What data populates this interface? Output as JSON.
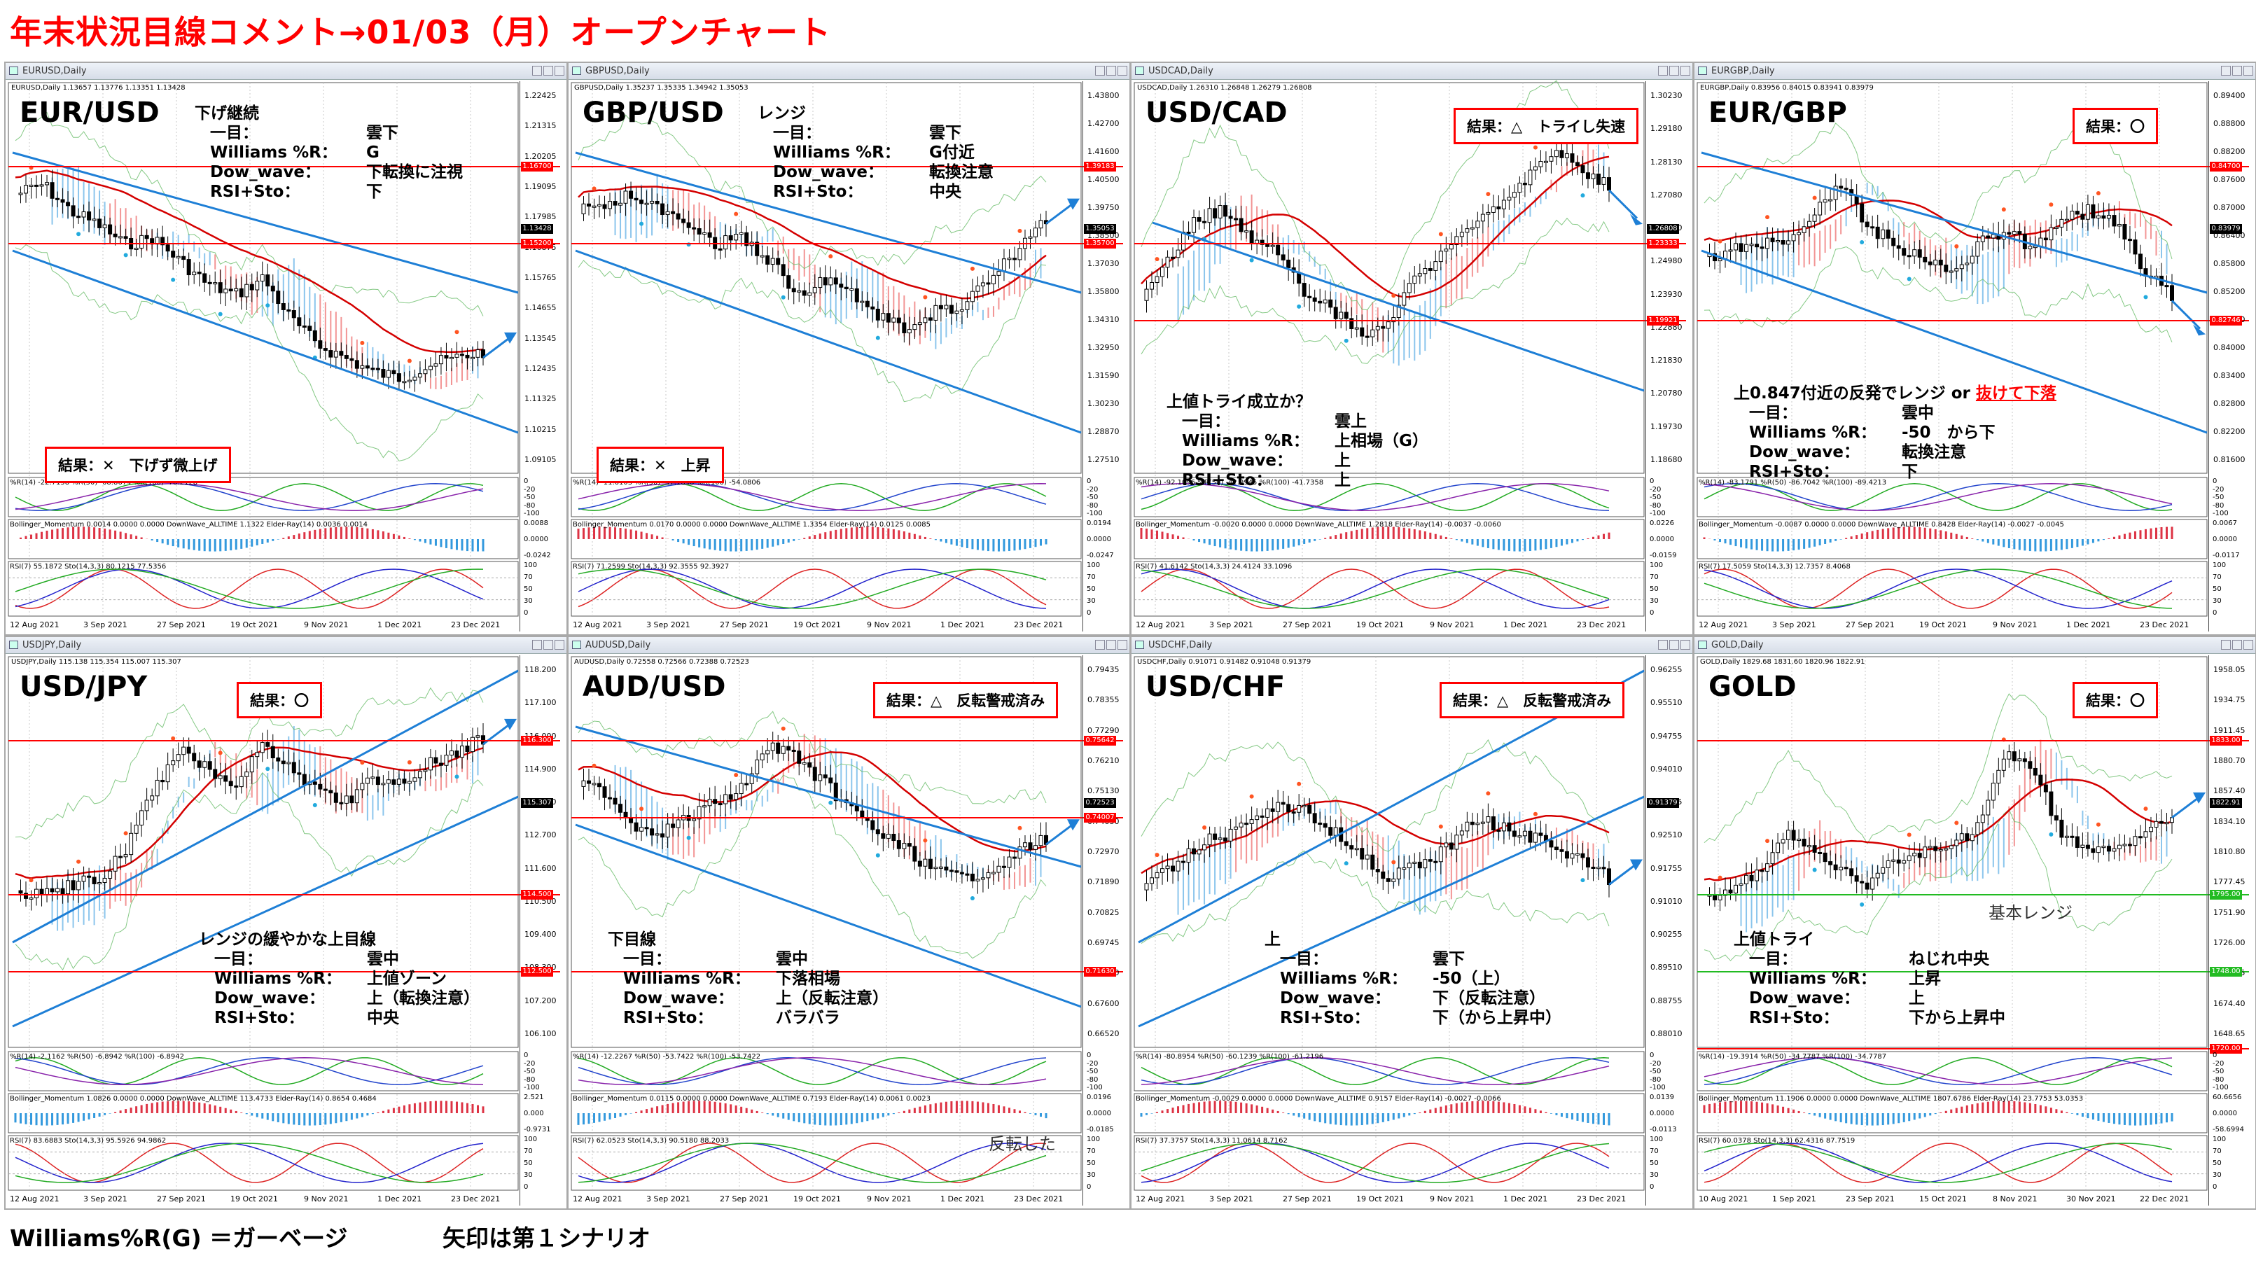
{
  "page_title": "年末状況目線コメント→01/03（月）オープンチャート",
  "footer": {
    "left": "Williams%R(G) ＝ガーベージ",
    "right": "矢印は第１シナリオ"
  },
  "colors": {
    "title": "#ff0000",
    "cloud_up": "#6fb7e8",
    "cloud_down": "#f07a7a",
    "trend": "#1e7fd6",
    "hline": "#ff0000",
    "ma": "#d40000",
    "candle": "#000000"
  },
  "charts": [
    {
      "id": "eurusd",
      "window_title": "EURUSD,Daily",
      "info": "EURUSD,Daily 1.13657 1.13776 1.13351 1.13428",
      "symbol": "EUR/USD",
      "comment": {
        "head": "下げ継続",
        "rows": [
          [
            "一目：",
            "雲下"
          ],
          [
            "Williams %R：",
            "G"
          ],
          [
            "Dow_wave：",
            "下転換に注視"
          ],
          [
            "RSI+Sto：",
            "下"
          ]
        ]
      },
      "result": "結果：✕　下げず微上げ",
      "price_scale": [
        "1.22425",
        "1.21315",
        "1.20205",
        "1.19095",
        "1.17985",
        "1.16875",
        "1.15765",
        "1.14655",
        "1.13545",
        "1.12435",
        "1.11325",
        "1.10215",
        "1.09105"
      ],
      "tags": [
        {
          "label": "1.16700",
          "color": "#ff0000"
        },
        {
          "label": "1.15200",
          "color": "#ff0000"
        },
        {
          "label": "1.13428",
          "color": "#000000"
        }
      ],
      "dates": [
        "12 Aug 2021",
        "3 Sep 2021",
        "27 Sep 2021",
        "19 Oct 2021",
        "9 Nov 2021",
        "1 Dec 2021",
        "23 Dec 2021"
      ],
      "ind1": "%R(14) -22.7158  %R(50) -68.8674  %R(100) -78.2128",
      "ind2": "Bollinger_Momentum 0.0014 0.0000 0.0000 DownWave_ALLTIME 1.1322 Elder-Ray(14) 0.0036 0.0014",
      "ind3": "RSI(7) 55.1872  Sto(14,3,3) 80.1215 77.5356",
      "ind1_scale": [
        "0",
        "-20",
        "-50",
        "-80",
        "-100"
      ],
      "ind2_scale": [
        "0.0088",
        "0.0000",
        "-0.0242"
      ],
      "ind3_scale": [
        "100",
        "70",
        "50",
        "30",
        "0"
      ]
    },
    {
      "id": "gbpusd",
      "window_title": "GBPUSD,Daily",
      "info": "GBPUSD,Daily 1.35237 1.35335 1.34942 1.35053",
      "symbol": "GBP/USD",
      "comment": {
        "head": "レンジ",
        "rows": [
          [
            "一目：",
            "雲下"
          ],
          [
            "Williams %R：",
            "G付近"
          ],
          [
            "Dow_wave：",
            "転換注意"
          ],
          [
            "RSI+Sto：",
            "中央"
          ]
        ]
      },
      "result": "結果：✕　上昇",
      "price_scale": [
        "1.43800",
        "1.42700",
        "1.41600",
        "1.40500",
        "1.39750",
        "1.38500",
        "1.37030",
        "1.35800",
        "1.34310",
        "1.32950",
        "1.31590",
        "1.30230",
        "1.28870",
        "1.27510"
      ],
      "tags": [
        {
          "label": "1.39183",
          "color": "#ff0000"
        },
        {
          "label": "1.35700",
          "color": "#ff0000"
        },
        {
          "label": "1.35053",
          "color": "#000000"
        }
      ],
      "dates": [
        "12 Aug 2021",
        "3 Sep 2021",
        "27 Sep 2021",
        "19 Oct 2021",
        "9 Nov 2021",
        "1 Dec 2021",
        "23 Dec 2021"
      ],
      "ind1": "%R(14) -11.6103  %R(50) -47.1848  %R(100) -54.0806",
      "ind2": "Bollinger_Momentum 0.0170 0.0000 0.0000 DownWave_ALLTIME 1.3354 Elder-Ray(14) 0.0125 0.0085",
      "ind3": "RSI(7) 71.2599  Sto(14,3,3) 92.3555 92.3927",
      "ind1_scale": [
        "0",
        "-20",
        "-50",
        "-80",
        "-100"
      ],
      "ind2_scale": [
        "0.0194",
        "0.0000",
        "-0.0247"
      ],
      "ind3_scale": [
        "100",
        "70",
        "50",
        "30",
        "0"
      ]
    },
    {
      "id": "usdcad",
      "window_title": "USDCAD,Daily",
      "info": "USDCAD,Daily 1.26310 1.26848 1.26279 1.26808",
      "symbol": "USD/CAD",
      "comment": {
        "head": "上値トライ成立か？",
        "rows": [
          [
            "一目：",
            "雲上"
          ],
          [
            "Williams %R：",
            "上相場（G）"
          ],
          [
            "Dow_wave：",
            "上"
          ],
          [
            "RSI+Sto：",
            "上"
          ]
        ]
      },
      "result": "結果：△　トライし失速",
      "price_scale": [
        "1.30230",
        "1.29180",
        "1.28130",
        "1.27080",
        "1.26030",
        "1.24980",
        "1.23930",
        "1.22880",
        "1.21830",
        "1.20780",
        "1.19730",
        "1.18680"
      ],
      "tags": [
        {
          "label": "1.26808",
          "color": "#000000"
        },
        {
          "label": "1.23333",
          "color": "#ff0000"
        },
        {
          "label": "1.19921",
          "color": "#ff0000"
        }
      ],
      "dates": [
        "12 Aug 2021",
        "3 Sep 2021",
        "27 Sep 2021",
        "19 Oct 2021",
        "9 Nov 2021",
        "1 Dec 2021",
        "23 Dec 2021"
      ],
      "ind1": "%R(14) -92.1096  %R(50) -42.9945  %R(100) -41.7358",
      "ind2": "Bollinger_Momentum -0.0020 0.0000 0.0000 DownWave_ALLTIME 1.2818 Elder-Ray(14) -0.0037 -0.0060",
      "ind3": "RSI(7) 41.6142  Sto(14,3,3) 24.4124 33.1096",
      "ind1_scale": [
        "0",
        "-20",
        "-50",
        "-80",
        "-100"
      ],
      "ind2_scale": [
        "0.0226",
        "0.0000",
        "-0.0159"
      ],
      "ind3_scale": [
        "100",
        "70",
        "50",
        "30",
        "0"
      ]
    },
    {
      "id": "eurgbp",
      "window_title": "EURGBP,Daily",
      "info": "EURGBP,Daily 0.83956 0.84015 0.83941 0.83979",
      "symbol": "EUR/GBP",
      "comment": {
        "head": "上0.847付近の反発でレンジ or ",
        "head_red": "抜けて下落",
        "rows": [
          [
            "一目：",
            "雲中"
          ],
          [
            "Williams %R：",
            "-50　から下"
          ],
          [
            "Dow_wave：",
            "転換注意"
          ],
          [
            "RSI+Sto：",
            "下"
          ]
        ]
      },
      "result": "結果：〇",
      "price_scale": [
        "0.89400",
        "0.88800",
        "0.88200",
        "0.87600",
        "0.87000",
        "0.86400",
        "0.85800",
        "0.85200",
        "0.84600",
        "0.84000",
        "0.83400",
        "0.82800",
        "0.82200",
        "0.81600"
      ],
      "tags": [
        {
          "label": "0.84700",
          "color": "#ff0000"
        },
        {
          "label": "0.83979",
          "color": "#000000"
        },
        {
          "label": "0.82746",
          "color": "#ff0000"
        }
      ],
      "dates": [
        "12 Aug 2021",
        "3 Sep 2021",
        "27 Sep 2021",
        "19 Oct 2021",
        "9 Nov 2021",
        "1 Dec 2021",
        "23 Dec 2021"
      ],
      "ind1": "%R(14) -83.1791  %R(50) -86.7042  %R(100) -89.4213",
      "ind2": "Bollinger_Momentum -0.0087 0.0000 0.0000 DownWave_ALLTIME 0.8428 Elder-Ray(14) -0.0027 -0.0045",
      "ind3": "RSI(7) 17.5059  Sto(14,3,3) 12.7357 8.4068",
      "ind1_scale": [
        "0",
        "-20",
        "-50",
        "-80",
        "-100"
      ],
      "ind2_scale": [
        "0.0067",
        "0.0000",
        "-0.0117"
      ],
      "ind3_scale": [
        "100",
        "70",
        "50",
        "30",
        "0"
      ]
    },
    {
      "id": "usdjpy",
      "window_title": "USDJPY,Daily",
      "info": "USDJPY,Daily 115.138 115.354 115.007 115.307",
      "symbol": "USD/JPY",
      "comment": {
        "head": "レンジの緩やかな上目線",
        "rows": [
          [
            "一目：",
            "雲中"
          ],
          [
            "Williams %R：",
            "上値ゾーン"
          ],
          [
            "Dow_wave：",
            "上（転換注意）"
          ],
          [
            "RSI+Sto：",
            "中央"
          ]
        ]
      },
      "result": "結果：〇",
      "price_scale": [
        "118.200",
        "117.100",
        "116.000",
        "114.900",
        "113.800",
        "112.700",
        "111.600",
        "110.500",
        "109.400",
        "108.300",
        "107.200",
        "106.100"
      ],
      "tags": [
        {
          "label": "116.300",
          "color": "#ff0000"
        },
        {
          "label": "115.307",
          "color": "#000000"
        },
        {
          "label": "114.500",
          "color": "#ff0000"
        },
        {
          "label": "112.500",
          "color": "#ff0000"
        }
      ],
      "dates": [
        "12 Aug 2021",
        "3 Sep 2021",
        "27 Sep 2021",
        "19 Oct 2021",
        "9 Nov 2021",
        "1 Dec 2021",
        "23 Dec 2021"
      ],
      "ind1": "%R(14) -2.1162  %R(50) -6.8942  %R(100) -6.8942",
      "ind2": "Bollinger_Momentum 1.0826 0.0000 0.0000 DownWave_ALLTIME 113.4733 Elder-Ray(14) 0.8654 0.4684",
      "ind3": "RSI(7) 83.6883  Sto(14,3,3) 95.5926 94.9862",
      "ind1_scale": [
        "0",
        "-20",
        "-50",
        "-80",
        "-100"
      ],
      "ind2_scale": [
        "2.521",
        "0.000",
        "-0.9731"
      ],
      "ind3_scale": [
        "100",
        "70",
        "50",
        "30",
        "0"
      ]
    },
    {
      "id": "audusd",
      "window_title": "AUDUSD,Daily",
      "info": "AUDUSD,Daily 0.72558 0.72566 0.72388 0.72523",
      "symbol": "AUD/USD",
      "comment": {
        "head": "下目線",
        "rows": [
          [
            "一目：",
            "雲中"
          ],
          [
            "Williams %R：",
            "下落相場"
          ],
          [
            "Dow_wave：",
            "上（反転注意）"
          ],
          [
            "RSI+Sto：",
            "バラバラ"
          ]
        ]
      },
      "result": "結果：△　反転警戒済み",
      "note": "反転した",
      "price_scale": [
        "0.79435",
        "0.78355",
        "0.77290",
        "0.76210",
        "0.75130",
        "0.74050",
        "0.72970",
        "0.71890",
        "0.70825",
        "0.69745",
        "0.68680",
        "0.67600",
        "0.66520"
      ],
      "tags": [
        {
          "label": "0.75642",
          "color": "#ff0000"
        },
        {
          "label": "0.74007",
          "color": "#ff0000"
        },
        {
          "label": "0.72523",
          "color": "#000000"
        },
        {
          "label": "0.71630",
          "color": "#ff0000"
        }
      ],
      "dates": [
        "12 Aug 2021",
        "3 Sep 2021",
        "27 Sep 2021",
        "19 Oct 2021",
        "9 Nov 2021",
        "1 Dec 2021",
        "23 Dec 2021"
      ],
      "ind1": "%R(14) -12.2267  %R(50) -53.7422  %R(100) -53.7422",
      "ind2": "Bollinger_Momentum 0.0115 0.0000 0.0000 DownWave_ALLTIME 0.7193 Elder-Ray(14) 0.0061 0.0023",
      "ind3": "RSI(7) 62.0523  Sto(14,3,3) 90.5180 88.2033",
      "ind1_scale": [
        "0",
        "-20",
        "-50",
        "-80",
        "-100"
      ],
      "ind2_scale": [
        "0.0196",
        "0.0000",
        "-0.0185"
      ],
      "ind3_scale": [
        "100",
        "70",
        "50",
        "30",
        "0"
      ]
    },
    {
      "id": "usdchf",
      "window_title": "USDCHF,Daily",
      "info": "USDCHF,Daily 0.91071 0.91482 0.91048 0.91379",
      "symbol": "USD/CHF",
      "comment": {
        "head": "上",
        "rows": [
          [
            "一目：",
            "雲下"
          ],
          [
            "Williams %R：",
            "-50（上）"
          ],
          [
            "Dow_wave：",
            "下（反転注意）"
          ],
          [
            "RSI+Sto：",
            "下（から上昇中）"
          ]
        ]
      },
      "result": "結果：△　反転警戒済み",
      "price_scale": [
        "0.96255",
        "0.95510",
        "0.94755",
        "0.94010",
        "0.93255",
        "0.92510",
        "0.91755",
        "0.91010",
        "0.90255",
        "0.89510",
        "0.88755",
        "0.88010"
      ],
      "tags": [
        {
          "label": "0.91379",
          "color": "#000000"
        }
      ],
      "dates": [
        "12 Aug 2021",
        "3 Sep 2021",
        "27 Sep 2021",
        "19 Oct 2021",
        "9 Nov 2021",
        "1 Dec 2021",
        "23 Dec 2021"
      ],
      "ind1": "%R(14) -80.8954  %R(50) -60.1239  %R(100) -61.2196",
      "ind2": "Bollinger_Momentum -0.0029 0.0000 0.0000 DownWave_ALLTIME 0.9157 Elder-Ray(14) -0.0027 -0.0066",
      "ind3": "RSI(7) 37.3757  Sto(14,3,3) 11.0614 8.7162",
      "ind1_scale": [
        "0",
        "-20",
        "-50",
        "-80",
        "-100"
      ],
      "ind2_scale": [
        "0.0139",
        "0.0000",
        "-0.0113"
      ],
      "ind3_scale": [
        "100",
        "70",
        "50",
        "30",
        "0"
      ]
    },
    {
      "id": "gold",
      "window_title": "GOLD,Daily",
      "info": "GOLD,Daily 1829.68 1831.60 1820.96 1822.91",
      "symbol": "GOLD",
      "comment": {
        "head": "上値トライ",
        "rows": [
          [
            "一目：",
            "ねじれ中央"
          ],
          [
            "Williams %R：",
            "上昇"
          ],
          [
            "Dow_wave：",
            "上"
          ],
          [
            "RSI+Sto：",
            "下から上昇中"
          ]
        ]
      },
      "result": "結果：〇",
      "note": "基本レンジ",
      "price_scale": [
        "1958.05",
        "1934.75",
        "1911.45",
        "1880.70",
        "1857.40",
        "1834.10",
        "1810.80",
        "1777.45",
        "1751.90",
        "1726.00",
        "1700.15",
        "1674.40",
        "1648.65"
      ],
      "tags": [
        {
          "label": "1833.00",
          "color": "#ff0000"
        },
        {
          "label": "1822.91",
          "color": "#000000"
        },
        {
          "label": "1795.00",
          "color": "#22bb22"
        },
        {
          "label": "1748.00",
          "color": "#22bb22"
        },
        {
          "label": "1720.00",
          "color": "#ff0000"
        }
      ],
      "dates": [
        "10 Aug 2021",
        "1 Sep 2021",
        "23 Sep 2021",
        "15 Oct 2021",
        "8 Nov 2021",
        "30 Nov 2021",
        "22 Dec 2021"
      ],
      "ind1": "%R(14) -19.3914  %R(50) -34.7787  %R(100) -34.7787",
      "ind2": "Bollinger_Momentum 11.1906 0.0000 0.0000 DownWave_ALLTIME 1807.6786 Elder-Ray(14) 23.7753 53.0353",
      "ind3": "RSI(7) 60.0378  Sto(14,3,3) 62.4316 87.7519",
      "ind1_scale": [
        "0",
        "-20",
        "-50",
        "-80",
        "-100"
      ],
      "ind2_scale": [
        "60.6656",
        "0.0000",
        "-58.6994"
      ],
      "ind3_scale": [
        "100",
        "70",
        "50",
        "30",
        "0"
      ]
    }
  ]
}
